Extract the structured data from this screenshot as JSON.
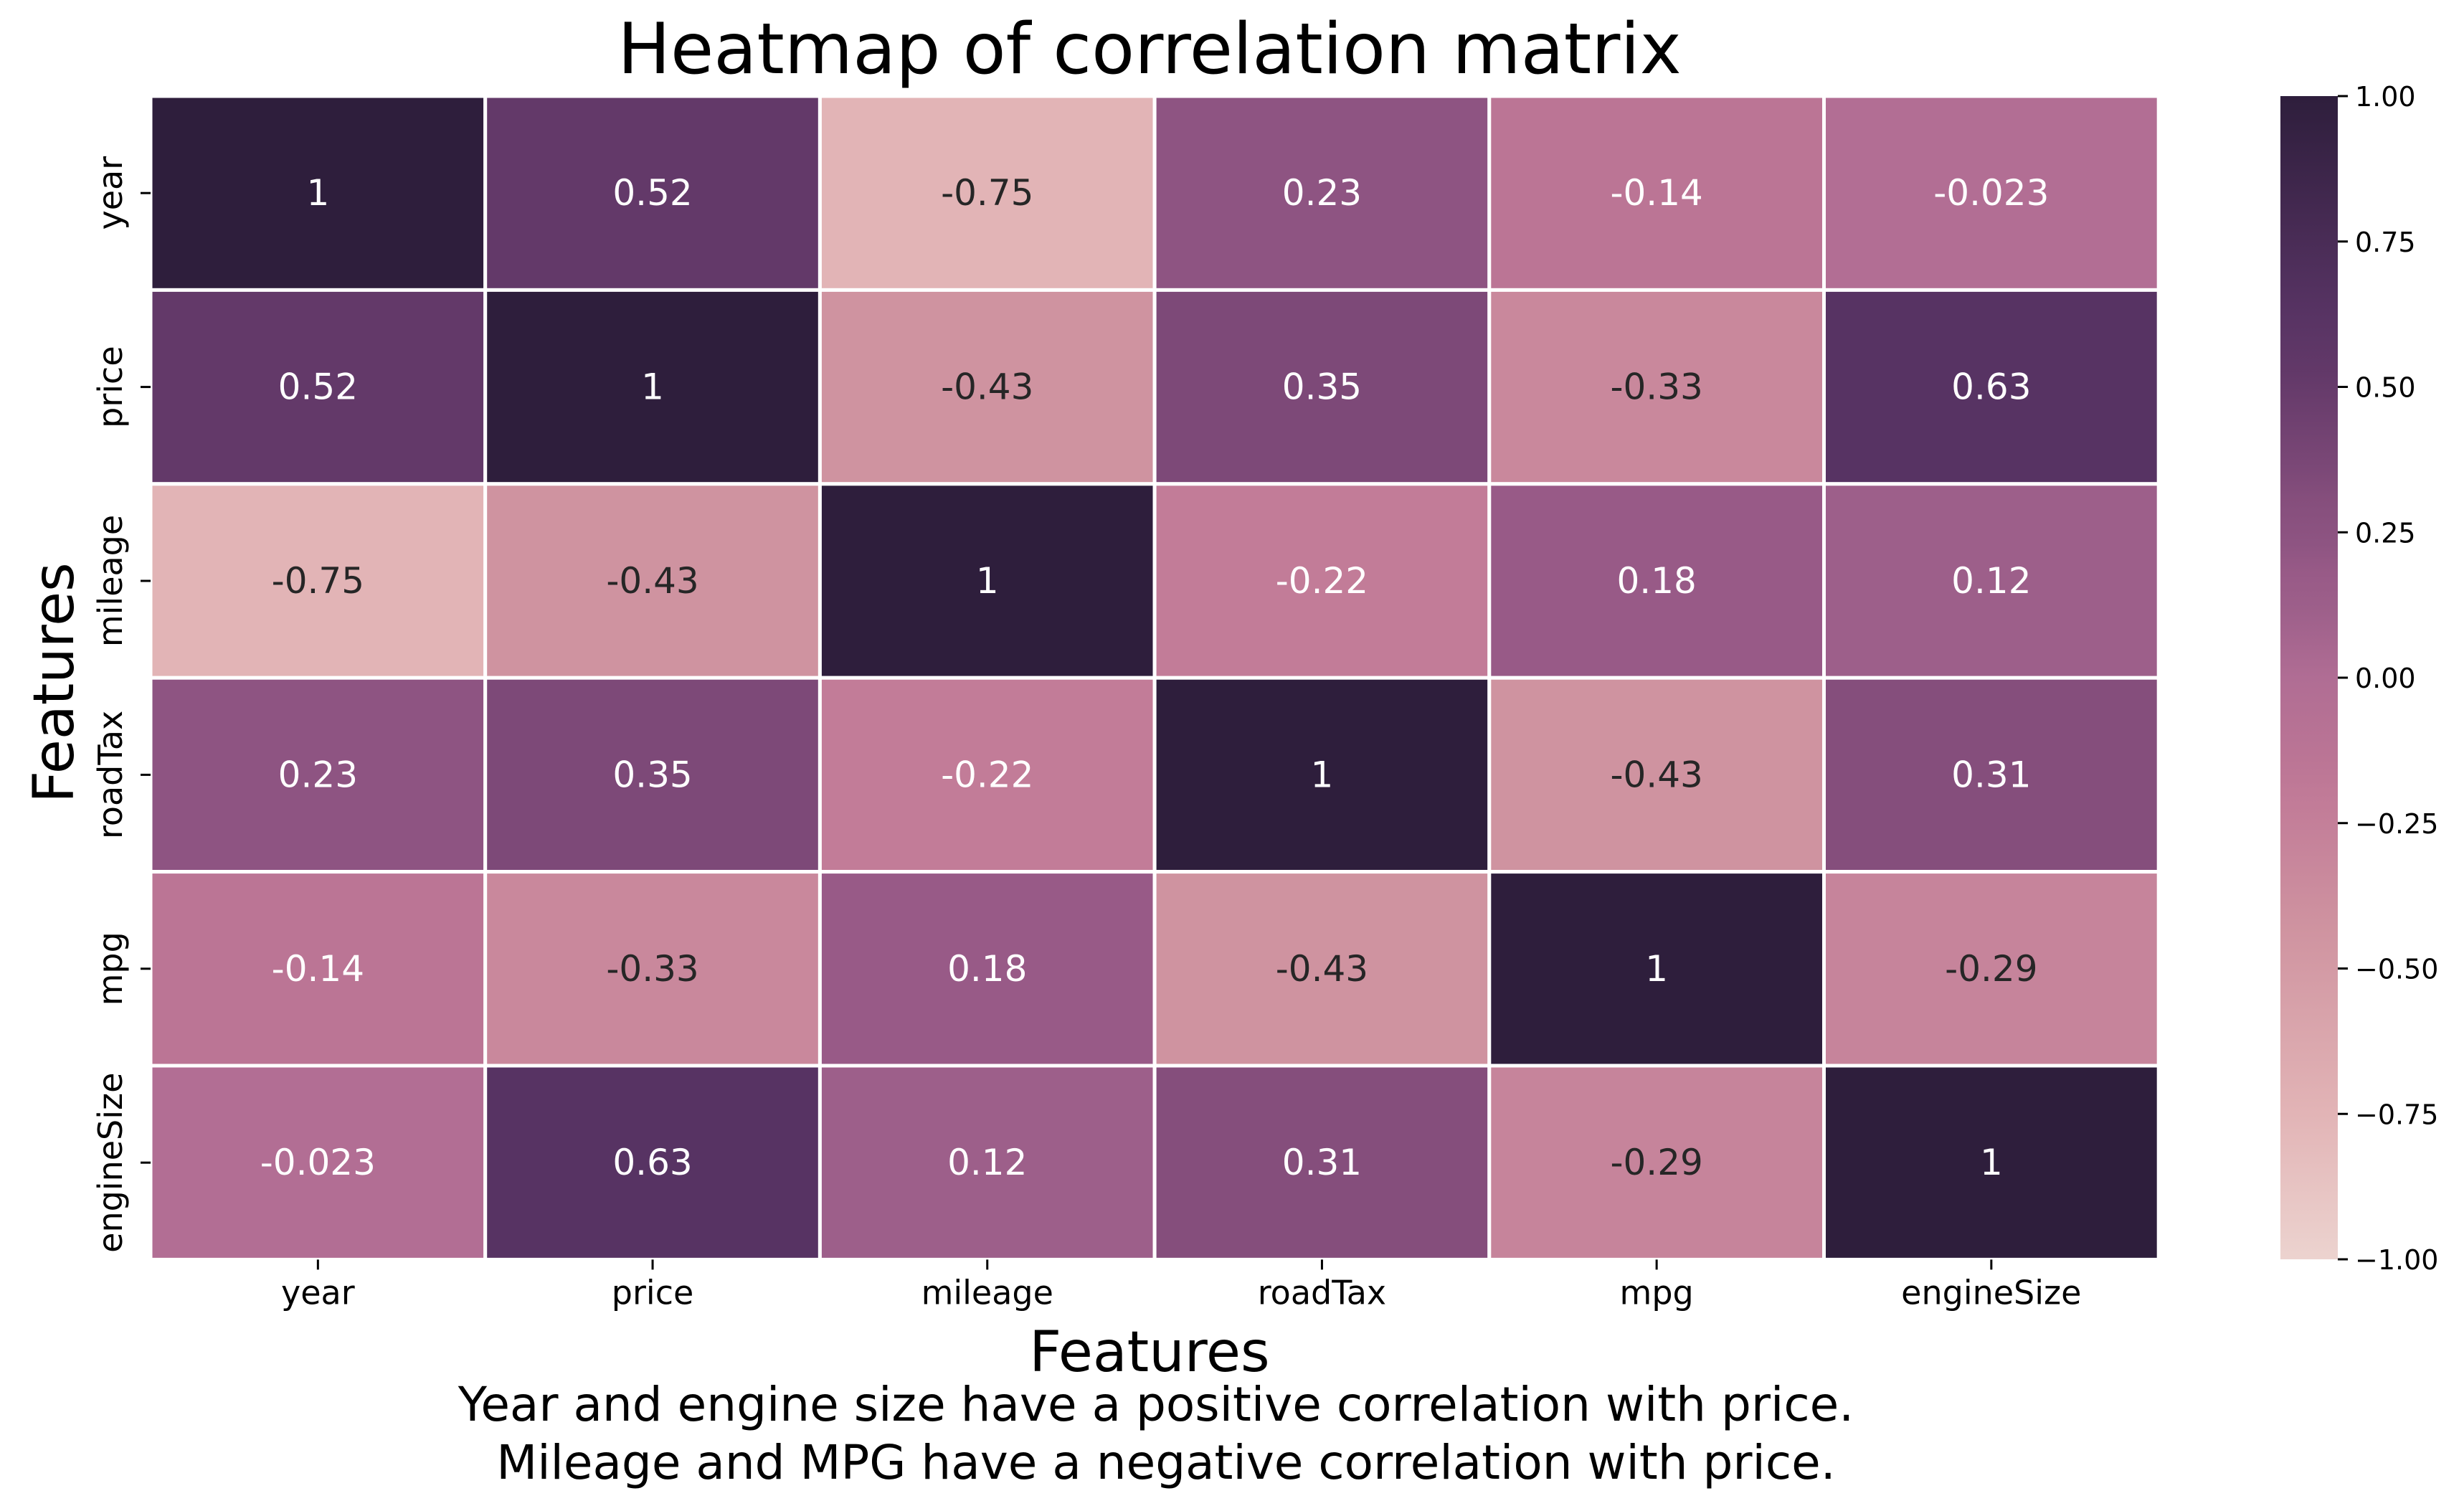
{
  "chart_data": {
    "type": "heatmap",
    "title": "Heatmap of correlation matrix",
    "xlabel": "Features",
    "ylabel": "Features",
    "x_categories": [
      "year",
      "price",
      "mileage",
      "roadTax",
      "mpg",
      "engineSize"
    ],
    "y_categories": [
      "year",
      "price",
      "mileage",
      "roadTax",
      "mpg",
      "engineSize"
    ],
    "values": [
      [
        1,
        0.52,
        -0.75,
        0.23,
        -0.14,
        -0.023
      ],
      [
        0.52,
        1,
        -0.43,
        0.35,
        -0.33,
        0.63
      ],
      [
        -0.75,
        -0.43,
        1,
        -0.22,
        0.18,
        0.12
      ],
      [
        0.23,
        0.35,
        -0.22,
        1,
        -0.43,
        0.31
      ],
      [
        -0.14,
        -0.33,
        0.18,
        -0.43,
        1,
        -0.29
      ],
      [
        -0.023,
        0.63,
        0.12,
        0.31,
        -0.29,
        1
      ]
    ],
    "cell_labels": [
      [
        "1",
        "0.52",
        "-0.75",
        "0.23",
        "-0.14",
        "-0.023"
      ],
      [
        "0.52",
        "1",
        "-0.43",
        "0.35",
        "-0.33",
        "0.63"
      ],
      [
        "-0.75",
        "-0.43",
        "1",
        "-0.22",
        "0.18",
        "0.12"
      ],
      [
        "0.23",
        "0.35",
        "-0.22",
        "1",
        "-0.43",
        "0.31"
      ],
      [
        "-0.14",
        "-0.33",
        "0.18",
        "-0.43",
        "1",
        "-0.29"
      ],
      [
        "-0.023",
        "0.63",
        "0.12",
        "0.31",
        "-0.29",
        "1"
      ]
    ],
    "colorbar": {
      "range": [
        -1.0,
        1.0
      ],
      "ticks": [
        1.0,
        0.75,
        0.5,
        0.25,
        0.0,
        -0.25,
        -0.5,
        -0.75,
        -1.0
      ],
      "tick_labels": [
        "1.00",
        "0.75",
        "0.50",
        "0.25",
        "0.00",
        "−0.25",
        "−0.50",
        "−0.75",
        "−1.00"
      ]
    },
    "colormap": [
      [
        0.0,
        "#ecd3cf"
      ],
      [
        0.125,
        "#e2b4b6"
      ],
      [
        0.285,
        "#cf93a0"
      ],
      [
        0.39,
        "#c27c98"
      ],
      [
        0.43,
        "#bb7595"
      ],
      [
        0.5,
        "#b06d94"
      ],
      [
        0.56,
        "#9d5f8a"
      ],
      [
        0.59,
        "#985a87"
      ],
      [
        0.615,
        "#8e5482"
      ],
      [
        0.655,
        "#854e7c"
      ],
      [
        0.675,
        "#7d4978"
      ],
      [
        0.76,
        "#633969"
      ],
      [
        0.815,
        "#573363"
      ],
      [
        1.0,
        "#2e1e3c"
      ]
    ],
    "text_color_light": "#ffffff",
    "text_color_dark": "#262626",
    "grid_line_color": "#ffffff"
  },
  "caption_lines": [
    "Year and engine size have a positive correlation with price.",
    "Mileage and MPG have a negative correlation with price."
  ]
}
